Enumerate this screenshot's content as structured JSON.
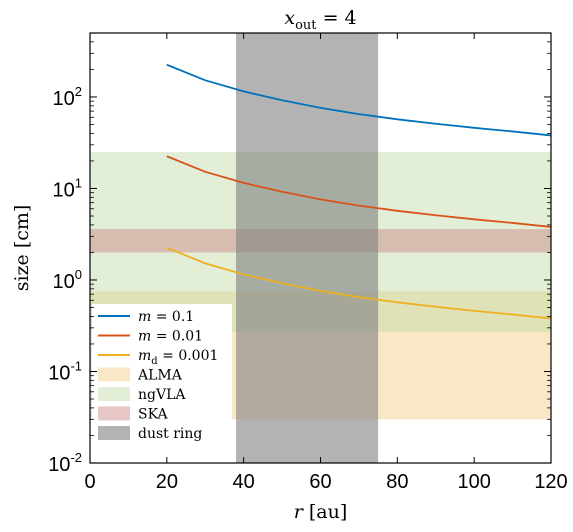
{
  "chart_data": {
    "type": "line",
    "title": "x_out = 4",
    "title_parts": {
      "main": "x",
      "sub": "out",
      "rest": " = 4"
    },
    "xlabel": "r [au]",
    "xlabel_parts": {
      "var": "r",
      "unit": " [au]"
    },
    "ylabel": "size [cm]",
    "xlim": [
      0,
      120
    ],
    "ylim": [
      0.01,
      500
    ],
    "yscale": "log",
    "x_ticks": [
      0,
      20,
      40,
      60,
      80,
      100,
      120
    ],
    "y_ticks": [
      {
        "value": 0.01,
        "base": "10",
        "exp": "-2"
      },
      {
        "value": 0.1,
        "base": "10",
        "exp": "-1"
      },
      {
        "value": 1,
        "base": "10",
        "exp": "0"
      },
      {
        "value": 10,
        "base": "10",
        "exp": "1"
      },
      {
        "value": 100,
        "base": "10",
        "exp": "2"
      }
    ],
    "grid": false,
    "legend_position": "bottom-left",
    "series": [
      {
        "name": "m = 0.1",
        "color": "#0072BD",
        "x": [
          20,
          30,
          40,
          50,
          60,
          70,
          80,
          90,
          100,
          110,
          120
        ],
        "y": [
          225,
          152,
          115,
          92,
          76,
          65,
          57,
          51,
          46,
          42,
          38
        ]
      },
      {
        "name": "m = 0.01",
        "color": "#D95319",
        "x": [
          20,
          30,
          40,
          50,
          60,
          70,
          80,
          90,
          100,
          110,
          120
        ],
        "y": [
          22.5,
          15.2,
          11.5,
          9.2,
          7.6,
          6.5,
          5.7,
          5.1,
          4.6,
          4.2,
          3.8
        ]
      },
      {
        "name": "m_d = 0.001",
        "color": "#EDB120",
        "x": [
          20,
          30,
          40,
          50,
          60,
          70,
          80,
          90,
          100,
          110,
          120
        ],
        "y": [
          2.25,
          1.52,
          1.15,
          0.92,
          0.76,
          0.65,
          0.57,
          0.51,
          0.46,
          0.42,
          0.38
        ]
      }
    ],
    "bands": [
      {
        "name": "ALMA",
        "color": "#F2CC80",
        "opacity": 0.45,
        "y_range": [
          0.03,
          0.75
        ]
      },
      {
        "name": "ngVLA",
        "color": "#BFD9A1",
        "opacity": 0.45,
        "y_range": [
          0.27,
          25
        ]
      },
      {
        "name": "SKA",
        "color": "#C98080",
        "opacity": 0.45,
        "y_range": [
          2,
          3.6
        ]
      },
      {
        "name": "dust ring",
        "color": "#808080",
        "opacity": 0.6,
        "x_range": [
          38,
          75
        ]
      }
    ],
    "legend": [
      {
        "kind": "line",
        "color": "#0072BD",
        "var": "m",
        "sub": "",
        "rest": " = 0.1"
      },
      {
        "kind": "line",
        "color": "#D95319",
        "var": "m",
        "sub": "",
        "rest": " = 0.01"
      },
      {
        "kind": "line",
        "color": "#EDB120",
        "var": "m",
        "sub": "d",
        "rest": " = 0.001"
      },
      {
        "kind": "patch",
        "color": "#F2CC80",
        "opacity": 0.45,
        "text": "ALMA"
      },
      {
        "kind": "patch",
        "color": "#BFD9A1",
        "opacity": 0.45,
        "text": "ngVLA"
      },
      {
        "kind": "patch",
        "color": "#C98080",
        "opacity": 0.45,
        "text": "SKA"
      },
      {
        "kind": "patch",
        "color": "#808080",
        "opacity": 0.6,
        "text": "dust ring"
      }
    ]
  }
}
